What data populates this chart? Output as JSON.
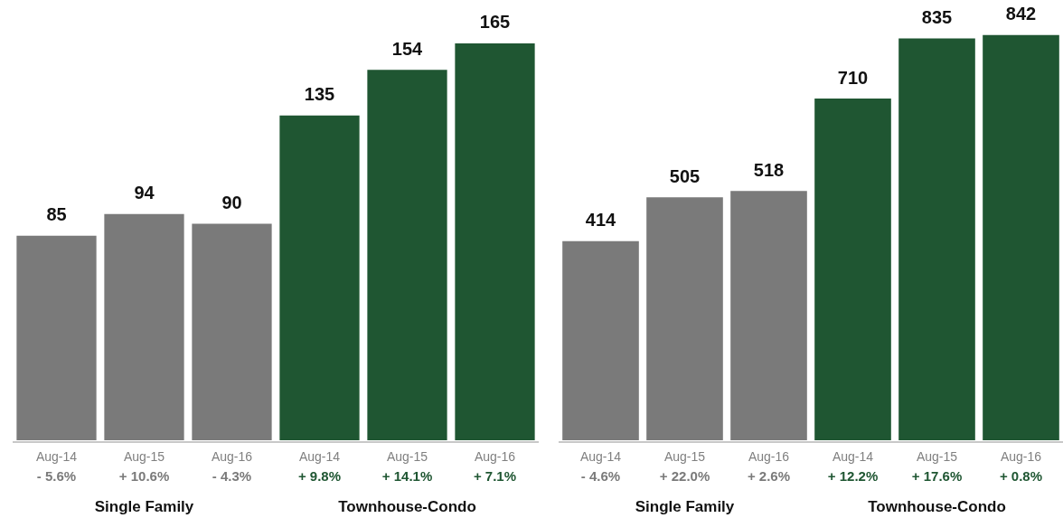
{
  "chart_data": [
    {
      "type": "bar",
      "data_labels": true,
      "grid": false,
      "tick_labels": "x",
      "categories": [
        "Aug-14\n- 5.6%",
        "Aug-15\n+ 10.6%",
        "Aug-16\n- 4.3%",
        "Aug-14\n+ 9.8%",
        "Aug-15\n+ 14.1%",
        "Aug-16\n+ 7.1%"
      ],
      "values": [
        85,
        94,
        90,
        135,
        154,
        165
      ],
      "colors": [
        "#7a7a7a",
        "#7a7a7a",
        "#7a7a7a",
        "#1f5632",
        "#1f5632",
        "#1f5632"
      ],
      "annotations": [
        "Single Family",
        "Townhouse-Condo"
      ]
    },
    {
      "type": "bar",
      "data_labels": true,
      "grid": false,
      "tick_labels": "x",
      "categories": [
        "Aug-14\n- 4.6%",
        "Aug-15\n+ 22.0%",
        "Aug-16\n+ 2.6%",
        "Aug-14\n+ 12.2%",
        "Aug-15\n+ 17.6%",
        "Aug-16\n+ 0.8%"
      ],
      "values": [
        414,
        505,
        518,
        710,
        835,
        842
      ],
      "colors": [
        "#7a7a7a",
        "#7a7a7a",
        "#7a7a7a",
        "#1f5632",
        "#1f5632",
        "#1f5632"
      ],
      "annotations": [
        "Single Family",
        "Townhouse-Condo"
      ]
    }
  ]
}
